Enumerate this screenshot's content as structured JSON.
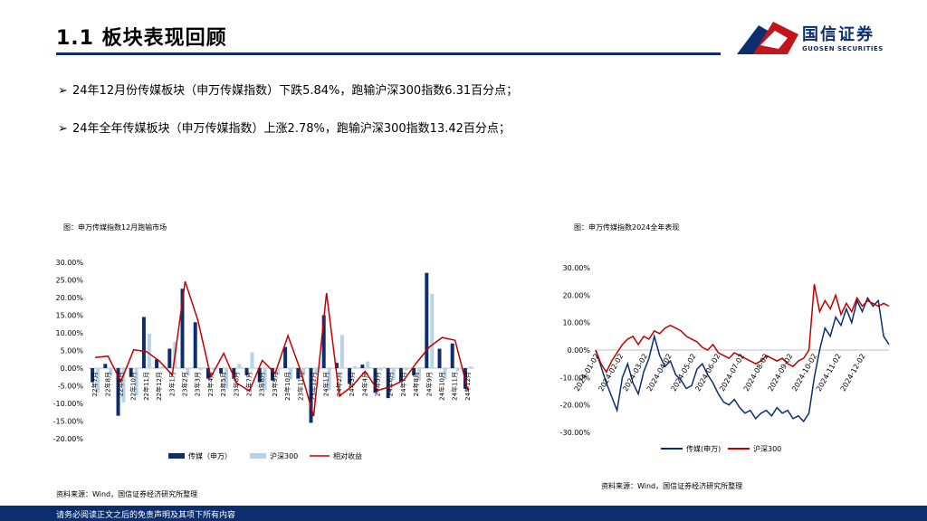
{
  "header": {
    "title": "1.1 板块表现回顾",
    "logo_cn": "国信证券",
    "logo_en": "GUOSEN SECURITIES"
  },
  "bullets": [
    {
      "marker": "➢",
      "text": "24年12月份传媒板块（申万传媒指数）下跌5.84%，跑输沪深300指数6.31百分点；"
    },
    {
      "marker": "➢",
      "text": "24年全年传媒板块（申万传媒指数）上涨2.78%，跑输沪深300指数13.42百分点；"
    }
  ],
  "captions": {
    "left": "图：申万传媒指数12月跑输市场",
    "right": "图：申万传媒指数2024全年表现"
  },
  "sources": {
    "left": "资料来源：Wind，国信证券经济研究所整理",
    "right": "资料来源：Wind，国信证券经济研究所整理"
  },
  "footer": "请务必阅读正文之后的免责声明及其项下所有内容",
  "colors": {
    "navy": "#0d2e6e",
    "light": "#b7d3ea",
    "red": "#c00000"
  },
  "chart_data": [
    {
      "type": "bar",
      "categories": [
        "22年7月",
        "22年8月",
        "22年9月",
        "22年10月",
        "22年11月",
        "22年12月",
        "23年1月",
        "23年2月",
        "23年3月",
        "23年4月",
        "23年5月",
        "23年6月",
        "23年7月",
        "23年8月",
        "23年9月",
        "23年10月",
        "23年11月",
        "23年12月",
        "24年1月",
        "24年2月",
        "24年3月",
        "24年4月",
        "24年5月",
        "24年6月",
        "24年7月",
        "24年8月",
        "24年9月",
        "24年10月",
        "24年11月",
        "24年12月"
      ],
      "series": [
        {
          "name": "传媒（申万）",
          "kind": "bar",
          "values": [
            -4.0,
            1.2,
            -13.5,
            -2.5,
            14.5,
            2.5,
            5.5,
            22.5,
            13.0,
            -3.0,
            -1.5,
            -3.0,
            -2.0,
            -4.0,
            -3.5,
            6.0,
            -3.0,
            -15.5,
            15.0,
            1.5,
            -4.5,
            1.0,
            -7.0,
            -8.5,
            -4.0,
            -2.0,
            27.0,
            5.5,
            7.0,
            -5.84
          ]
        },
        {
          "name": "沪深300",
          "kind": "bar",
          "values": [
            -7.0,
            -2.2,
            -9.7,
            -7.7,
            9.8,
            0.5,
            7.4,
            -2.1,
            -0.5,
            -0.5,
            -5.7,
            1.2,
            4.5,
            -6.2,
            -2.0,
            -3.2,
            -2.1,
            -1.9,
            -6.3,
            9.4,
            0.6,
            1.9,
            -0.7,
            -3.3,
            -0.6,
            -3.5,
            21.0,
            -3.2,
            -0.9,
            0.47
          ]
        },
        {
          "name": "相对收益",
          "kind": "line",
          "values": [
            3.0,
            3.4,
            -3.8,
            5.2,
            4.7,
            2.0,
            -1.9,
            24.6,
            13.5,
            -2.5,
            4.2,
            -4.2,
            -6.5,
            2.2,
            -1.5,
            9.2,
            -0.9,
            -13.6,
            21.3,
            -7.9,
            -5.1,
            -0.9,
            -6.3,
            -5.2,
            -3.4,
            1.5,
            6.0,
            8.7,
            7.9,
            -6.31
          ]
        }
      ],
      "yticks": [
        "30.00%",
        "25.00%",
        "20.00%",
        "15.00%",
        "10.00%",
        "5.00%",
        "0.00%",
        "-5.00%",
        "-10.00%",
        "-15.00%",
        "-20.00%"
      ],
      "ylim": [
        -20,
        30
      ],
      "legend": "bottom"
    },
    {
      "type": "line",
      "x_labels": [
        "2024-01-02",
        "2024-02-02",
        "2024-03-02",
        "2024-04-02",
        "2024-05-02",
        "2024-06-02",
        "2024-07-02",
        "2024-08-02",
        "2024-09-02",
        "2024-10-02",
        "2024-11-02",
        "2024-12-02"
      ],
      "series": [
        {
          "name": "传媒(申万)",
          "values": [
            0,
            -6,
            -12,
            -17,
            -22,
            -10,
            -5,
            -12,
            -16,
            -8,
            -3,
            5,
            -2,
            -6,
            -4,
            -9,
            -11,
            -14,
            -13,
            -7,
            -5,
            -9,
            -12,
            -16,
            -19,
            -20,
            -18,
            -21,
            -23,
            -22,
            -25,
            -23,
            -22,
            -24,
            -21,
            -23,
            -22,
            -25,
            -24,
            -26,
            -23,
            -10,
            0,
            8,
            5,
            12,
            9,
            15,
            10,
            18,
            14,
            19,
            16,
            18,
            5,
            2
          ]
        },
        {
          "name": "沪深300",
          "values": [
            0,
            -5,
            -8,
            -4,
            -1,
            2,
            4,
            5,
            2,
            5,
            4,
            7,
            6,
            8,
            9,
            8,
            7,
            5,
            4,
            3,
            1,
            0,
            2,
            -1,
            -2,
            -3,
            -1,
            -2,
            -3,
            -4,
            -5,
            -4,
            -2,
            -3,
            -4,
            -3,
            -5,
            -6,
            -4,
            -3,
            0,
            24,
            14,
            18,
            15,
            20,
            13,
            17,
            14,
            19,
            16,
            18,
            17,
            16,
            17,
            16
          ]
        }
      ],
      "yticks": [
        "30.00%",
        "20.00%",
        "10.00%",
        "0.00%",
        "-10.00%",
        "-20.00%",
        "-30.00%"
      ],
      "ylim": [
        -30,
        30
      ],
      "legend": "bottom"
    }
  ]
}
